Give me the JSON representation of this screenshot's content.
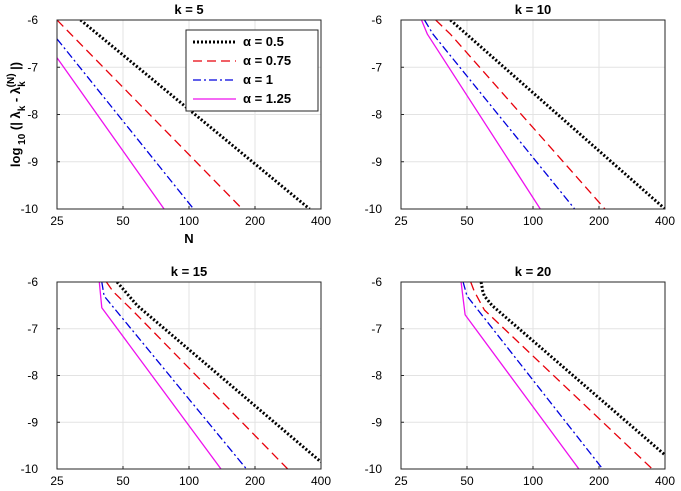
{
  "figure": {
    "ylabel_text": "log10(|λk − λk(N)|)"
  },
  "chart_data": [
    {
      "type": "line",
      "title": "k = 5",
      "xscale": "log2",
      "xlim": [
        25,
        400
      ],
      "ylim": [
        -10,
        -6
      ],
      "xticks": [
        25,
        50,
        100,
        200,
        400
      ],
      "yticks": [
        -10,
        -9,
        -8,
        -7,
        -6
      ],
      "xlabel": "N",
      "ylabel": "log 10 (| λk - λk(N) |)",
      "legend": {
        "placement": "top-right",
        "entries": [
          "α = 0.5",
          "α = 0.75",
          "α = 1",
          "α = 1.25"
        ]
      },
      "series": [
        {
          "name": "α = 0.5",
          "x": [
            32,
            355
          ],
          "y": [
            -6.0,
            -10.0
          ]
        },
        {
          "name": "α = 0.75",
          "x": [
            25,
            175
          ],
          "y": [
            -6.0,
            -10.0
          ]
        },
        {
          "name": "α = 1",
          "x": [
            25,
            105
          ],
          "y": [
            -6.4,
            -10.0
          ]
        },
        {
          "name": "α = 1.25",
          "x": [
            25,
            77
          ],
          "y": [
            -6.8,
            -10.0
          ]
        }
      ]
    },
    {
      "type": "line",
      "title": "k = 10",
      "xscale": "log2",
      "xlim": [
        25,
        400
      ],
      "ylim": [
        -10,
        -6
      ],
      "xticks": [
        25,
        50,
        100,
        200,
        400
      ],
      "yticks": [
        -10,
        -9,
        -8,
        -7,
        -6
      ],
      "series": [
        {
          "name": "α = 0.5",
          "x": [
            42,
            400
          ],
          "y": [
            -6.0,
            -10.0
          ]
        },
        {
          "name": "α = 0.75",
          "x": [
            36,
            42,
            213
          ],
          "y": [
            -6.0,
            -6.3,
            -10.0
          ]
        },
        {
          "name": "α = 1",
          "x": [
            32,
            35,
            155
          ],
          "y": [
            -6.0,
            -6.3,
            -10.0
          ]
        },
        {
          "name": "α = 1.25",
          "x": [
            31,
            33,
            108
          ],
          "y": [
            -6.0,
            -6.3,
            -10.0
          ]
        }
      ]
    },
    {
      "type": "line",
      "title": "k = 15",
      "xscale": "log2",
      "xlim": [
        25,
        400
      ],
      "ylim": [
        -10,
        -6
      ],
      "xticks": [
        25,
        50,
        100,
        200,
        400
      ],
      "yticks": [
        -10,
        -9,
        -8,
        -7,
        -6
      ],
      "series": [
        {
          "name": "α = 0.5",
          "x": [
            47,
            49,
            58,
            400
          ],
          "y": [
            -6.0,
            -6.1,
            -6.5,
            -9.85
          ]
        },
        {
          "name": "α = 0.75",
          "x": [
            42,
            45,
            55,
            282
          ],
          "y": [
            -6.0,
            -6.2,
            -6.6,
            -10.0
          ]
        },
        {
          "name": "α = 1",
          "x": [
            40,
            41,
            183
          ],
          "y": [
            -6.0,
            -6.3,
            -10.0
          ]
        },
        {
          "name": "α = 1.25",
          "x": [
            39,
            40,
            140
          ],
          "y": [
            -6.0,
            -6.55,
            -10.0
          ]
        }
      ]
    },
    {
      "type": "line",
      "title": "k = 20",
      "xscale": "log2",
      "xlim": [
        25,
        400
      ],
      "ylim": [
        -10,
        -6
      ],
      "xticks": [
        25,
        50,
        100,
        200,
        400
      ],
      "yticks": [
        -10,
        -9,
        -8,
        -7,
        -6
      ],
      "series": [
        {
          "name": "α = 0.5",
          "x": [
            58,
            59,
            60,
            65,
            400
          ],
          "y": [
            -6.0,
            -6.2,
            -6.3,
            -6.5,
            -9.7
          ]
        },
        {
          "name": "α = 0.75",
          "x": [
            52,
            54,
            60,
            350
          ],
          "y": [
            -6.0,
            -6.2,
            -6.6,
            -10.0
          ]
        },
        {
          "name": "α = 1",
          "x": [
            48,
            50,
            208
          ],
          "y": [
            -6.0,
            -6.3,
            -10.0
          ]
        },
        {
          "name": "α = 1.25",
          "x": [
            47,
            49,
            162
          ],
          "y": [
            -6.0,
            -6.7,
            -10.0
          ]
        }
      ]
    }
  ],
  "styles": {
    "colors": [
      "#000000",
      "#e8000b",
      "#0000dd",
      "#ee11ee"
    ],
    "dashes": [
      "2 2",
      "9 5",
      "8 3 2 3",
      ""
    ]
  }
}
